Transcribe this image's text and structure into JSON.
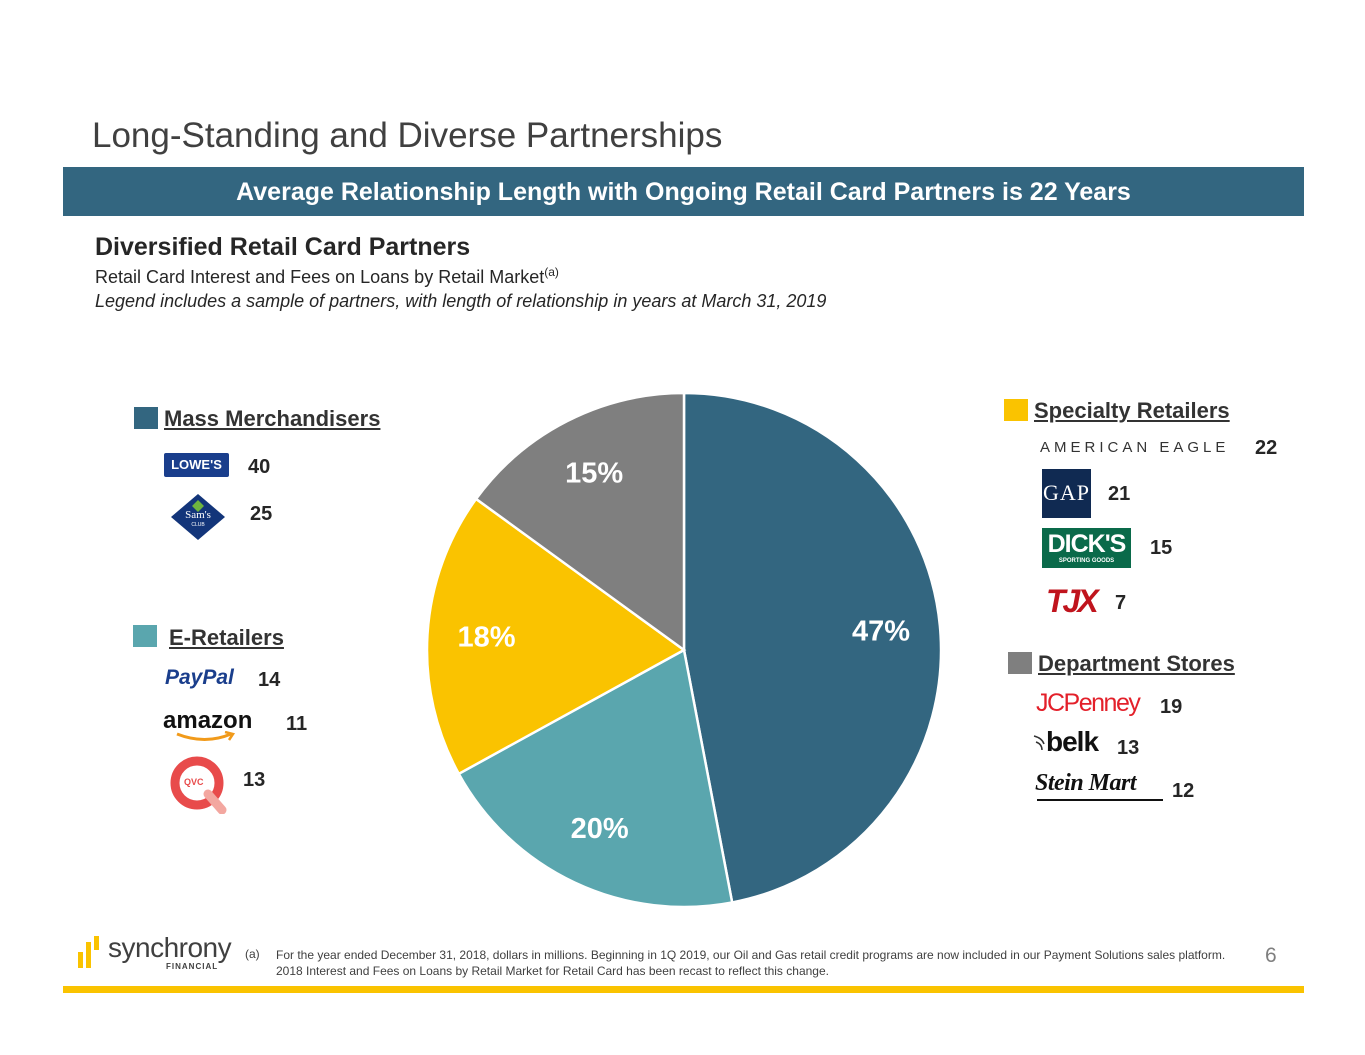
{
  "page": {
    "title": "Long-Standing and Diverse Partnerships",
    "banner": "Average Relationship Length with Ongoing Retail Card Partners is 22 Years",
    "section_title": "Diversified Retail Card Partners",
    "subtitle": "Retail Card Interest and Fees on Loans by Retail Market",
    "subtitle_sup": "(a)",
    "legend_note": "Legend includes a sample of partners, with length of relationship in years at March 31, 2019",
    "footnote_mark": "(a)",
    "footnote": "For the year ended December 31, 2018, dollars in millions. Beginning in 1Q 2019, our Oil and Gas retail credit programs are now included in our Payment Solutions sales platform. 2018 Interest and Fees on Loans by Retail Market for Retail Card has been recast to reflect this change.",
    "page_number": "6",
    "brand": {
      "word": "synchrony",
      "sub": "FINANCIAL"
    }
  },
  "chart_data": {
    "type": "pie",
    "slices": [
      {
        "name": "Mass Merchandisers",
        "value": 47,
        "label": "47%",
        "color": "#336680"
      },
      {
        "name": "E-Retailers",
        "value": 20,
        "label": "20%",
        "color": "#5aa6ae"
      },
      {
        "name": "Specialty Retailers",
        "value": 18,
        "label": "18%",
        "color": "#fac300"
      },
      {
        "name": "Department Stores",
        "value": 15,
        "label": "15%",
        "color": "#7f7f7f"
      }
    ]
  },
  "legend": {
    "mass": {
      "label": "Mass Merchandisers",
      "color": "#336680",
      "partners": [
        {
          "logo": "LOWE'S",
          "icon": "lowes-logo-icon",
          "years": "40"
        },
        {
          "logo": "Sam's",
          "logo_sub": "CLUB",
          "icon": "sams-club-logo-icon",
          "years": "25"
        }
      ]
    },
    "eretail": {
      "label": "E-Retailers",
      "color": "#5aa6ae",
      "partners": [
        {
          "logo": "PayPal",
          "icon": "paypal-logo-icon",
          "years": "14"
        },
        {
          "logo": "amazon",
          "icon": "amazon-logo-icon",
          "years": "11"
        },
        {
          "logo": "QVC",
          "icon": "qvc-logo-icon",
          "years": "13"
        }
      ]
    },
    "specialty": {
      "label": "Specialty Retailers",
      "color": "#fac300",
      "partners": [
        {
          "logo": "AMERICAN EAGLE",
          "icon": "american-eagle-logo-icon",
          "years": "22"
        },
        {
          "logo": "GAP",
          "icon": "gap-logo-icon",
          "years": "21"
        },
        {
          "logo": "DICK'S",
          "logo_sub": "SPORTING GOODS",
          "icon": "dicks-logo-icon",
          "years": "15"
        },
        {
          "logo": "TJX",
          "icon": "tjx-logo-icon",
          "years": "7"
        }
      ]
    },
    "dept": {
      "label": "Department Stores",
      "color": "#7f7f7f",
      "partners": [
        {
          "logo": "JCPenney",
          "icon": "jcpenney-logo-icon",
          "years": "19"
        },
        {
          "logo": "belk",
          "icon": "belk-logo-icon",
          "years": "13"
        },
        {
          "logo": "Stein Mart",
          "icon": "stein-mart-logo-icon",
          "years": "12"
        }
      ]
    }
  }
}
